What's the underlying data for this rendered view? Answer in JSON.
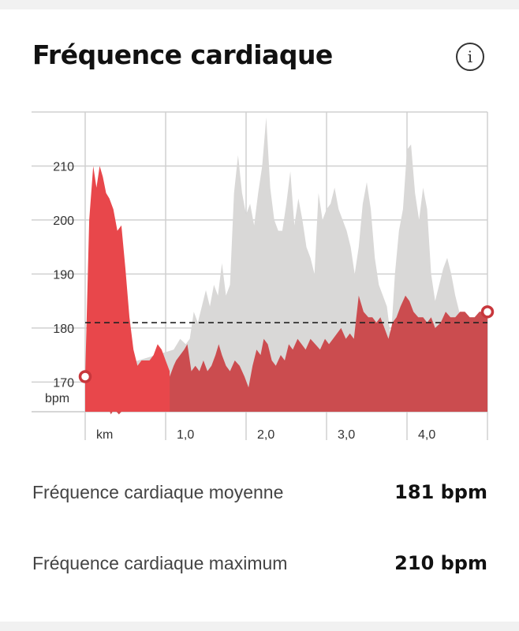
{
  "header": {
    "title": "Fréquence cardiaque",
    "info_icon": "info-icon",
    "info_glyph": "i"
  },
  "stats": [
    {
      "label": "Fréquence cardiaque moyenne",
      "value": "181 bpm"
    },
    {
      "label": "Fréquence cardiaque maximum",
      "value": "210 bpm"
    }
  ],
  "chart_data": {
    "type": "area",
    "ylabel": "bpm",
    "xlabel": "km",
    "y_ticks": [
      "210",
      "200",
      "190",
      "180",
      "170"
    ],
    "x_ticks": [
      "km",
      "1,0",
      "2,0",
      "3,0",
      "4,0"
    ],
    "ylim": [
      164.5,
      220
    ],
    "xlim": [
      0,
      5.0
    ],
    "average_line": 181,
    "grid": true,
    "colors": {
      "heart_rate": "#cb4c4f",
      "highlight": "#e8474b",
      "comparison": "#d9d8d7",
      "average_line": "#222222"
    },
    "series": [
      {
        "x": [
          0,
          0.03,
          0.08,
          0.12,
          0.16,
          0.2,
          0.23,
          0.27,
          0.32,
          0.36,
          0.42,
          0.48,
          0.52,
          0.57,
          0.6,
          0.65,
          0.7,
          0.76,
          0.8,
          0.85,
          0.9,
          0.95,
          1.0,
          1.05,
          1.1,
          1.13,
          1.18,
          1.23,
          1.27,
          1.32,
          1.37,
          1.42,
          1.47,
          1.52,
          1.57,
          1.62,
          1.66,
          1.7,
          1.75,
          1.8,
          1.86,
          1.92,
          1.98,
          2.03,
          2.08,
          2.13,
          2.18,
          2.22,
          2.27,
          2.32,
          2.37,
          2.43,
          2.48,
          2.53,
          2.58,
          2.64,
          2.69,
          2.74,
          2.8,
          2.86,
          2.92,
          2.98,
          3.03,
          3.08,
          3.13,
          3.18,
          3.24,
          3.29,
          3.34,
          3.4,
          3.46,
          3.52,
          3.57,
          3.62,
          3.67,
          3.72,
          3.77,
          3.82,
          3.87,
          3.92,
          3.98,
          4.03,
          4.08,
          4.14,
          4.2,
          4.25,
          4.3,
          4.35,
          4.42,
          4.48,
          4.54,
          4.6,
          4.66,
          4.72,
          4.78,
          4.84,
          4.9,
          4.96,
          5.0
        ],
        "values": [
          171,
          170,
          168,
          166,
          167,
          166,
          165,
          166,
          164,
          165,
          164,
          165,
          166,
          167,
          165,
          166,
          167,
          168,
          171,
          174,
          168,
          166,
          168,
          171,
          173,
          174,
          175,
          176,
          177,
          172,
          173,
          172,
          174,
          172,
          173,
          175,
          177,
          175,
          173,
          172,
          174,
          173,
          171,
          169,
          173,
          176,
          175,
          178,
          177,
          174,
          173,
          175,
          174,
          177,
          176,
          178,
          177,
          176,
          178,
          177,
          176,
          178,
          177,
          178,
          179,
          180,
          178,
          179,
          178,
          186,
          183,
          182,
          182,
          181,
          182,
          180,
          178,
          181,
          182,
          184,
          186,
          185,
          183,
          182,
          182,
          181,
          182,
          180,
          181,
          183,
          182,
          182,
          183,
          183,
          182,
          182,
          183,
          183,
          183
        ]
      },
      {
        "x": [
          0,
          0.05,
          0.1,
          0.14,
          0.18,
          0.22,
          0.26,
          0.3,
          0.35,
          0.4,
          0.45,
          0.5,
          0.55,
          0.6,
          0.65,
          0.7,
          0.75,
          0.8,
          0.85,
          0.9,
          0.95,
          1.0,
          1.05
        ],
        "values": [
          171,
          200,
          210,
          206,
          210,
          208,
          205,
          204,
          202,
          198,
          199,
          191,
          182,
          176,
          173,
          174,
          174,
          174,
          175,
          177,
          176,
          174,
          172
        ]
      },
      {
        "x": [
          0,
          1.1,
          1.18,
          1.25,
          1.3,
          1.35,
          1.4,
          1.45,
          1.5,
          1.55,
          1.6,
          1.65,
          1.7,
          1.75,
          1.8,
          1.85,
          1.9,
          1.95,
          2.0,
          2.05,
          2.1,
          2.15,
          2.2,
          2.25,
          2.3,
          2.35,
          2.4,
          2.45,
          2.5,
          2.55,
          2.6,
          2.65,
          2.7,
          2.75,
          2.8,
          2.85,
          2.9,
          2.95,
          3.0,
          3.05,
          3.1,
          3.15,
          3.2,
          3.25,
          3.3,
          3.35,
          3.4,
          3.45,
          3.5,
          3.55,
          3.6,
          3.65,
          3.7,
          3.75,
          3.8,
          3.85,
          3.9,
          3.95,
          4.0,
          4.05,
          4.1,
          4.15,
          4.2,
          4.25,
          4.3,
          4.35,
          4.4,
          4.45,
          4.5,
          4.55,
          4.6,
          4.65,
          4.7,
          4.75,
          4.8,
          4.85,
          4.9,
          4.95,
          5.0
        ],
        "values": [
          171,
          176,
          178,
          177,
          178,
          183,
          181,
          184,
          187,
          184,
          188,
          186,
          192,
          186,
          188,
          205,
          212,
          205,
          201,
          203,
          199,
          205,
          210,
          219,
          206,
          200,
          198,
          198,
          203,
          209,
          199,
          204,
          200,
          195,
          193,
          190,
          205,
          200,
          202,
          203,
          206,
          202,
          200,
          198,
          195,
          190,
          195,
          203,
          207,
          202,
          193,
          188,
          186,
          184,
          178,
          190,
          198,
          202,
          213,
          214,
          205,
          200,
          206,
          202,
          190,
          185,
          188,
          191,
          193,
          190,
          186,
          183,
          181,
          182,
          182,
          182,
          183,
          183,
          183
        ]
      }
    ]
  }
}
